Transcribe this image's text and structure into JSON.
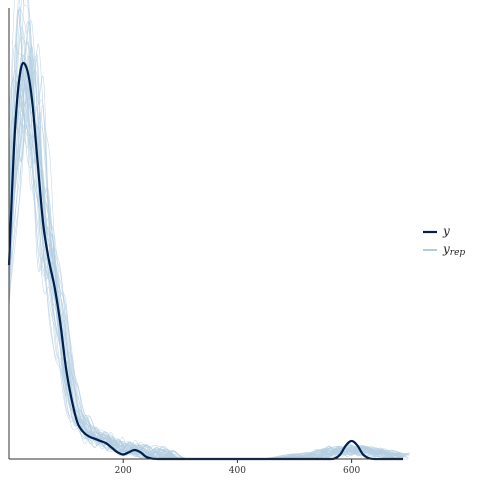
{
  "chart_data": {
    "type": "line",
    "title": "",
    "xlabel": "",
    "ylabel": "",
    "xlim": [
      0,
      690
    ],
    "ylim": [
      0,
      1
    ],
    "x_ticks": [
      200,
      400,
      600
    ],
    "y_ticks": [],
    "grid": false,
    "legend_position": "right",
    "legend": [
      {
        "label": "y",
        "subscript": "",
        "color": "#011f4b"
      },
      {
        "label": "y",
        "subscript": "rep",
        "color": "#b3cde0"
      }
    ],
    "series": [
      {
        "name": "y",
        "color": "#011f4b",
        "x": [
          0,
          10,
          20,
          30,
          40,
          50,
          60,
          70,
          80,
          90,
          100,
          110,
          120,
          130,
          140,
          150,
          160,
          170,
          180,
          190,
          200,
          210,
          220,
          230,
          240,
          250,
          260,
          270,
          280,
          300,
          350,
          400,
          450,
          500,
          540,
          560,
          570,
          580,
          590,
          600,
          610,
          620,
          630,
          640,
          650,
          660,
          690
        ],
        "y": [
          0.43,
          0.72,
          0.86,
          0.87,
          0.8,
          0.66,
          0.52,
          0.44,
          0.38,
          0.3,
          0.2,
          0.13,
          0.08,
          0.06,
          0.05,
          0.045,
          0.04,
          0.035,
          0.025,
          0.015,
          0.01,
          0.015,
          0.02,
          0.015,
          0.005,
          0.001,
          0.0,
          0.0,
          0.0,
          0.0,
          0.0,
          0.0,
          0.0,
          0.0,
          0.0,
          0.0,
          0.001,
          0.01,
          0.03,
          0.04,
          0.03,
          0.01,
          0.002,
          0.0,
          0.0,
          0.0,
          0.0
        ]
      }
    ],
    "replicates": {
      "name": "y_rep",
      "color": "#b3cde0",
      "count": 40,
      "x": [
        0,
        10,
        20,
        30,
        40,
        50,
        60,
        70,
        80,
        90,
        100,
        110,
        120,
        130,
        140,
        150,
        160,
        170,
        180,
        190,
        200,
        210,
        220,
        230,
        240,
        250,
        260,
        270,
        280,
        300,
        350,
        400,
        450,
        500,
        530,
        540,
        550,
        560,
        570,
        580,
        590,
        600,
        610,
        620,
        630,
        640,
        650,
        660,
        670,
        690
      ],
      "y": [
        0.43,
        0.72,
        0.85,
        0.86,
        0.8,
        0.68,
        0.54,
        0.45,
        0.38,
        0.29,
        0.2,
        0.13,
        0.09,
        0.07,
        0.055,
        0.045,
        0.04,
        0.035,
        0.03,
        0.025,
        0.02,
        0.018,
        0.015,
        0.012,
        0.01,
        0.008,
        0.006,
        0.004,
        0.002,
        0.001,
        0.0,
        0.0,
        0.0,
        0.0,
        0.004,
        0.008,
        0.012,
        0.015,
        0.016,
        0.017,
        0.018,
        0.018,
        0.017,
        0.016,
        0.015,
        0.013,
        0.011,
        0.008,
        0.005,
        0.002
      ]
    }
  }
}
